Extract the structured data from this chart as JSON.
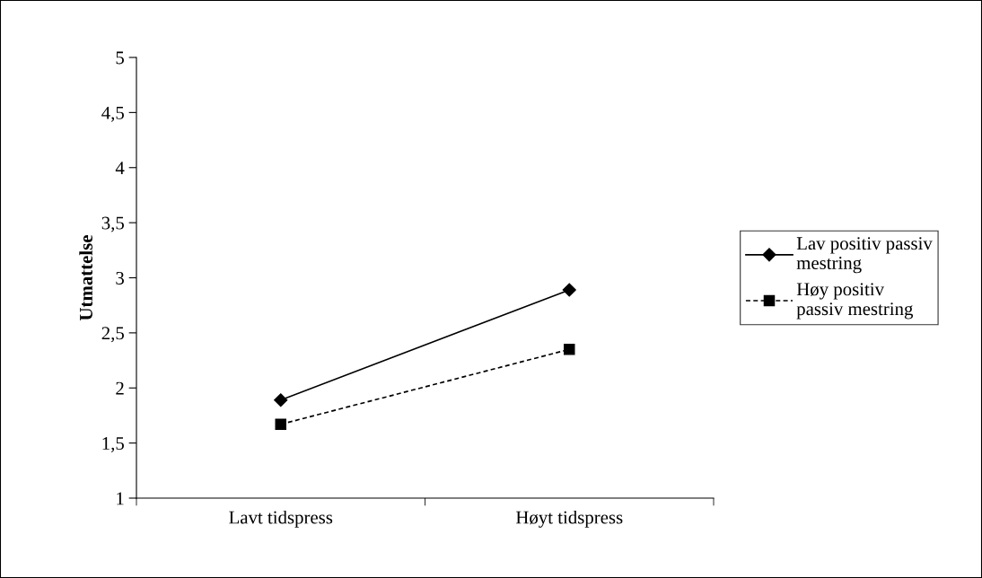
{
  "chart_data": {
    "type": "line",
    "ylabel": "Utmattelse",
    "categories": [
      "Lavt tidspress",
      "Høyt tidspress"
    ],
    "series": [
      {
        "name": "Lav positiv passiv mestring",
        "color": "#000000",
        "values": [
          1.89,
          2.89
        ],
        "marker": "diamond",
        "line_style": "solid"
      },
      {
        "name": "Høy positiv passiv mestring",
        "color": "#000000",
        "values": [
          1.67,
          2.35
        ],
        "marker": "square",
        "line_style": "dashed"
      }
    ],
    "ylim": [
      1,
      5
    ],
    "yticks": [
      1,
      {
        "value": 1.5,
        "label": "1,5"
      },
      2,
      {
        "value": 2.5,
        "label": "2,5"
      },
      3,
      {
        "value": 3.5,
        "label": "3,5"
      },
      4,
      {
        "value": 4.5,
        "label": "4,5"
      },
      5
    ],
    "grid": false,
    "legend": "right"
  }
}
